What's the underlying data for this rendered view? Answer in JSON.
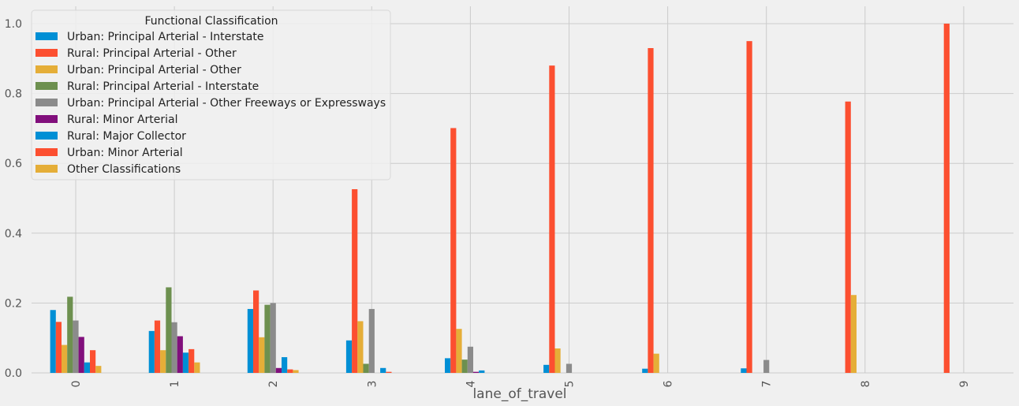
{
  "chart_data": {
    "type": "bar",
    "xlabel": "lane_of_travel",
    "ylabel": "",
    "ylim": [
      0,
      1.0
    ],
    "yticks": [
      "0.0",
      "0.2",
      "0.4",
      "0.6",
      "0.8",
      "1.0"
    ],
    "categories": [
      "0",
      "1",
      "2",
      "3",
      "4",
      "5",
      "6",
      "7",
      "8",
      "9"
    ],
    "grid": true,
    "legend": {
      "title": "Functional Classification",
      "placement": "top-left"
    },
    "series": [
      {
        "name": "Urban: Principal Arterial - Interstate",
        "color": "#008fd5",
        "values": [
          0.18,
          0.12,
          0.183,
          0.093,
          0.042,
          0.023,
          0.012,
          0.013,
          0,
          0
        ]
      },
      {
        "name": "Rural: Principal Arterial - Other",
        "color": "#fc4f30",
        "values": [
          0.146,
          0.15,
          0.236,
          0.526,
          0.701,
          0.88,
          0.93,
          0.95,
          0.777,
          1.0
        ]
      },
      {
        "name": "Urban: Principal Arterial - Other",
        "color": "#e5ae38",
        "values": [
          0.08,
          0.065,
          0.102,
          0.148,
          0.126,
          0.07,
          0.055,
          0,
          0.223,
          0
        ]
      },
      {
        "name": "Rural: Principal Arterial - Interstate",
        "color": "#6d904f",
        "values": [
          0.218,
          0.245,
          0.195,
          0.026,
          0.038,
          0,
          0,
          0,
          0,
          0
        ]
      },
      {
        "name": "Urban: Principal Arterial - Other Freeways or Expressways",
        "color": "#8b8b8b",
        "values": [
          0.15,
          0.145,
          0.2,
          0.183,
          0.075,
          0.026,
          0,
          0.037,
          0,
          0
        ]
      },
      {
        "name": "Rural: Minor Arterial",
        "color": "#810f7c",
        "values": [
          0.103,
          0.105,
          0.014,
          0,
          0.003,
          0,
          0,
          0,
          0,
          0
        ]
      },
      {
        "name": "Rural: Major Collector",
        "color": "#008fd5",
        "values": [
          0.03,
          0.058,
          0.045,
          0.014,
          0.007,
          0,
          0,
          0,
          0,
          0
        ]
      },
      {
        "name": "Urban: Minor Arterial",
        "color": "#fc4f30",
        "values": [
          0.065,
          0.068,
          0.01,
          0.003,
          0,
          0,
          0,
          0,
          0,
          0
        ]
      },
      {
        "name": "Other Classifications",
        "color": "#e5ae38",
        "values": [
          0.02,
          0.03,
          0.008,
          0,
          0,
          0,
          0,
          0,
          0,
          0
        ]
      }
    ]
  }
}
